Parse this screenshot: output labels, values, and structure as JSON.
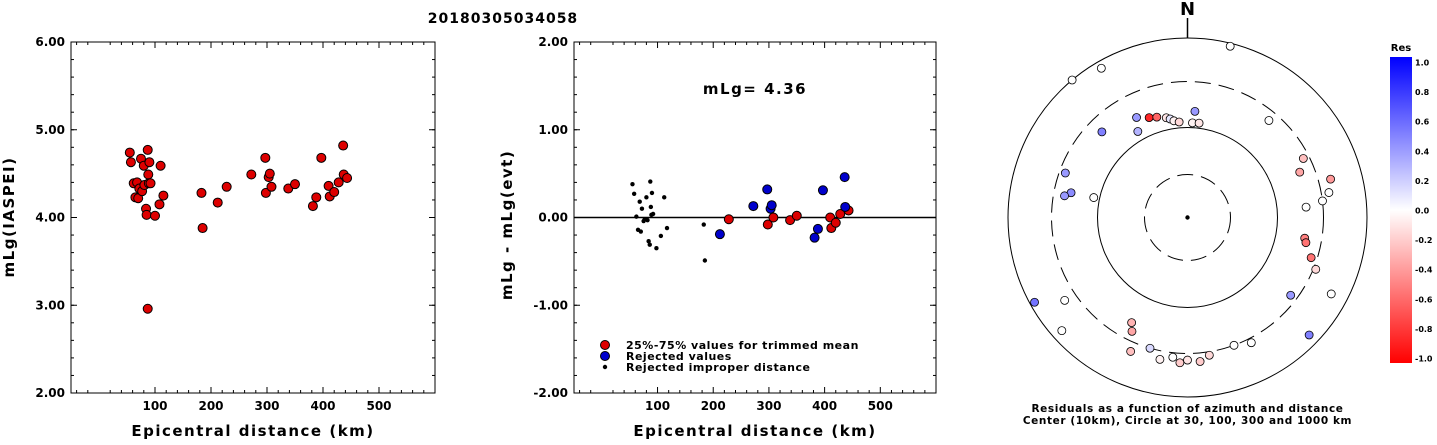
{
  "title": "20180305034058",
  "chart_data": [
    {
      "type": "scatter",
      "name": "magnitude-vs-distance",
      "xlabel": "Epicentral distance (km)",
      "ylabel": "mLg(IASPEI)",
      "xlim": [
        -50,
        600
      ],
      "ylim": [
        2.0,
        6.0
      ],
      "xticks": [
        "100",
        "200",
        "300",
        "400",
        "500"
      ],
      "yticks": [
        "2.00",
        "3.00",
        "4.00",
        "5.00",
        "6.00"
      ],
      "series": [
        {
          "color": "#dd0000",
          "points": [
            [
              55,
              4.74
            ],
            [
              57,
              4.63
            ],
            [
              62,
              4.39
            ],
            [
              65,
              4.23
            ],
            [
              68,
              4.4
            ],
            [
              70,
              4.22
            ],
            [
              72,
              4.33
            ],
            [
              75,
              4.67
            ],
            [
              77,
              4.3
            ],
            [
              80,
              4.59
            ],
            [
              81,
              4.37
            ],
            [
              84,
              4.1
            ],
            [
              85,
              4.03
            ],
            [
              87,
              4.77
            ],
            [
              88,
              4.49
            ],
            [
              89,
              4.39
            ],
            [
              90,
              4.63
            ],
            [
              92,
              4.39
            ],
            [
              100,
              4.02
            ],
            [
              108,
              4.15
            ],
            [
              110,
              4.59
            ],
            [
              115,
              4.25
            ],
            [
              87,
              2.96
            ],
            [
              183,
              4.28
            ],
            [
              185,
              3.88
            ],
            [
              212,
              4.17
            ],
            [
              228,
              4.35
            ],
            [
              272,
              4.49
            ],
            [
              297,
              4.68
            ],
            [
              298,
              4.28
            ],
            [
              303,
              4.46
            ],
            [
              305,
              4.5
            ],
            [
              308,
              4.35
            ],
            [
              338,
              4.33
            ],
            [
              350,
              4.38
            ],
            [
              382,
              4.13
            ],
            [
              388,
              4.23
            ],
            [
              397,
              4.68
            ],
            [
              410,
              4.36
            ],
            [
              412,
              4.24
            ],
            [
              420,
              4.29
            ],
            [
              428,
              4.4
            ],
            [
              436,
              4.82
            ],
            [
              437,
              4.49
            ],
            [
              443,
              4.45
            ]
          ]
        }
      ]
    },
    {
      "type": "scatter",
      "name": "residual-vs-distance",
      "xlabel": "Epicentral distance (km)",
      "ylabel": "mLg - mLg(evt)",
      "xlim": [
        -50,
        600
      ],
      "ylim": [
        -2.0,
        2.0
      ],
      "xticks": [
        "100",
        "200",
        "300",
        "400",
        "500"
      ],
      "yticks": [
        "-2.00",
        "-1.00",
        "0.00",
        "1.00",
        "2.00"
      ],
      "zero_line": true,
      "annotation": "mLg= 4.36",
      "legend": [
        "25%-75% values for trimmed mean",
        "Rejected values",
        "Rejected improper distance"
      ],
      "series": [
        {
          "label": "25%-75% values for trimmed mean",
          "color": "#dd0000",
          "points": [
            [
              228,
              -0.02
            ],
            [
              298,
              -0.08
            ],
            [
              308,
              0.0
            ],
            [
              338,
              -0.03
            ],
            [
              350,
              0.02
            ],
            [
              410,
              0.0
            ],
            [
              412,
              -0.12
            ],
            [
              420,
              -0.06
            ],
            [
              428,
              0.04
            ],
            [
              443,
              0.08
            ]
          ]
        },
        {
          "label": "Rejected values",
          "color": "#0000cc",
          "points": [
            [
              212,
              -0.19
            ],
            [
              272,
              0.13
            ],
            [
              297,
              0.32
            ],
            [
              303,
              0.1
            ],
            [
              305,
              0.14
            ],
            [
              382,
              -0.23
            ],
            [
              388,
              -0.13
            ],
            [
              397,
              0.31
            ],
            [
              436,
              0.46
            ],
            [
              437,
              0.12
            ]
          ]
        },
        {
          "label": "Rejected improper distance",
          "color": "#000000",
          "points": [
            [
              55,
              0.38
            ],
            [
              58,
              0.27
            ],
            [
              62,
              0.01
            ],
            [
              65,
              -0.14
            ],
            [
              68,
              0.18
            ],
            [
              70,
              -0.16
            ],
            [
              72,
              0.1
            ],
            [
              75,
              -0.04
            ],
            [
              77,
              -0.02
            ],
            [
              80,
              0.23
            ],
            [
              82,
              -0.03
            ],
            [
              84,
              -0.27
            ],
            [
              86,
              -0.31
            ],
            [
              87,
              0.41
            ],
            [
              88,
              0.12
            ],
            [
              89,
              0.03
            ],
            [
              90,
              0.28
            ],
            [
              92,
              0.04
            ],
            [
              98,
              -0.35
            ],
            [
              106,
              -0.21
            ],
            [
              112,
              0.23
            ],
            [
              117,
              -0.12
            ],
            [
              183,
              -0.08
            ],
            [
              185,
              -0.49
            ]
          ]
        }
      ]
    },
    {
      "type": "polar-scatter",
      "name": "residual-azimuth-distance",
      "north_label": "N",
      "caption_line1": "Residuals as a function of azimuth and distance",
      "caption_line2": "Center (10km), Circle at 30, 100, 300 and 1000 km",
      "colorbar_title": "Res",
      "colorbar_ticks": [
        "1.0",
        "0.8",
        "0.6",
        "0.4",
        "0.2",
        "0.0",
        "-0.2",
        "-0.4",
        "-0.6",
        "-0.8",
        "-1.0"
      ],
      "color_scale": {
        "positive": "#0000ff",
        "zero": "#ffffff",
        "negative": "#ff0000"
      },
      "rings_km": [
        30,
        100,
        300,
        1000
      ],
      "points_az_dist_res": [
        [
          -40,
          1000,
          0.0
        ],
        [
          -30,
          820,
          0.0
        ],
        [
          14,
          920,
          0.0
        ],
        [
          -21,
          150,
          -0.85
        ],
        [
          -17,
          143,
          -0.6
        ],
        [
          -12,
          133,
          -0.1
        ],
        [
          -10,
          127,
          0.1
        ],
        [
          -8,
          120,
          -0.05
        ],
        [
          -5,
          115,
          -0.15
        ],
        [
          3,
          112,
          -0.05
        ],
        [
          4,
          148,
          0.4
        ],
        [
          7,
          113,
          -0.1
        ],
        [
          -27,
          170,
          0.4
        ],
        [
          -30,
          125,
          0.3
        ],
        [
          -45,
          210,
          0.5
        ],
        [
          -70,
          260,
          0.4
        ],
        [
          -78,
          200,
          0.45
        ],
        [
          -80,
          230,
          0.4
        ],
        [
          -78,
          115,
          0.0
        ],
        [
          40,
          240,
          0.0
        ],
        [
          63,
          260,
          -0.25
        ],
        [
          68,
          210,
          -0.35
        ],
        [
          75,
          420,
          -0.4
        ],
        [
          80,
          370,
          0.0
        ],
        [
          83,
          300,
          0.0
        ],
        [
          85,
          200,
          0.0
        ],
        [
          100,
          200,
          -0.5
        ],
        [
          102,
          210,
          -0.55
        ],
        [
          108,
          260,
          -0.55
        ],
        [
          112,
          320,
          -0.15
        ],
        [
          118,
          630,
          0.0
        ],
        [
          127,
          255,
          0.4
        ],
        [
          134,
          750,
          0.5
        ],
        [
          153,
          340,
          0.0
        ],
        [
          160,
          300,
          0.0
        ],
        [
          171,
          330,
          -0.15
        ],
        [
          175,
          380,
          -0.2
        ],
        [
          180,
          360,
          -0.1
        ],
        [
          183,
          390,
          -0.2
        ],
        [
          186,
          340,
          0.0
        ],
        [
          191,
          380,
          -0.05
        ],
        [
          196,
          300,
          0.15
        ],
        [
          203,
          390,
          -0.25
        ],
        [
          206,
          240,
          -0.35
        ],
        [
          208,
          200,
          -0.3
        ],
        [
          228,
          750,
          0.0
        ],
        [
          236,
          420,
          0.0
        ],
        [
          241,
          880,
          0.55
        ]
      ]
    }
  ]
}
